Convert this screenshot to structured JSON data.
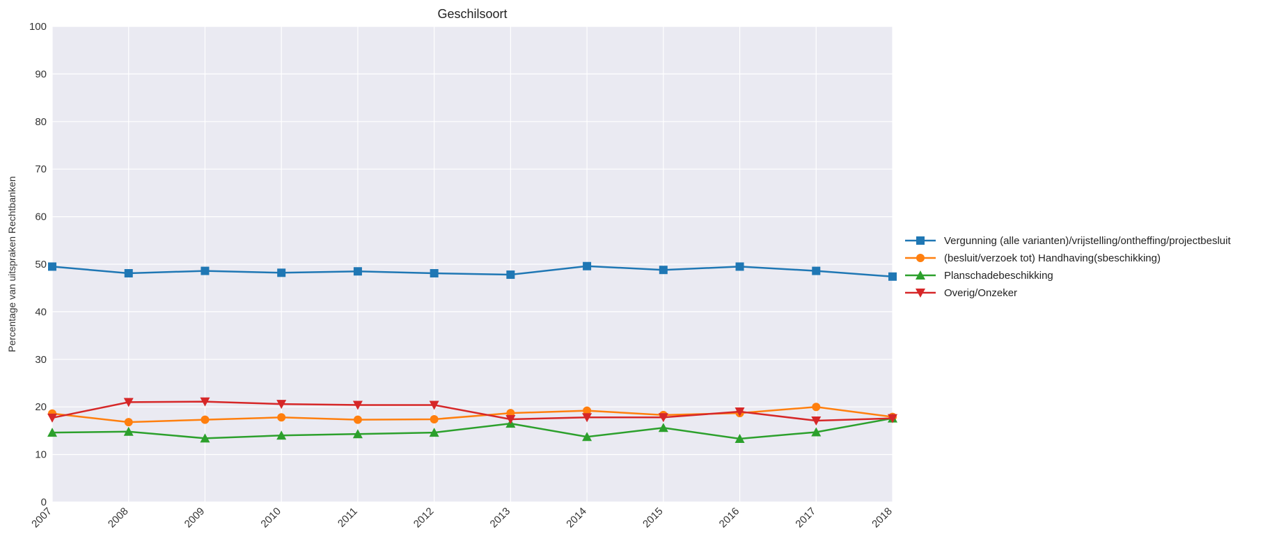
{
  "chart_data": {
    "type": "line",
    "title": "Geschilsoort",
    "xlabel": "",
    "ylabel": "Percentage van uitspraken Rechtbanken",
    "ylim": [
      0,
      100
    ],
    "yticks": [
      0,
      10,
      20,
      30,
      40,
      50,
      60,
      70,
      80,
      90,
      100
    ],
    "categories": [
      "2007",
      "2008",
      "2009",
      "2010",
      "2011",
      "2012",
      "2013",
      "2014",
      "2015",
      "2016",
      "2017",
      "2018"
    ],
    "grid": true,
    "legend_position": "right",
    "background": "#eaeaf2",
    "series": [
      {
        "name": "Vergunning (alle varianten)/vrijstelling/ontheffing/projectbesluit",
        "color": "#1f77b4",
        "marker": "square",
        "values": [
          49.5,
          48.1,
          48.6,
          48.2,
          48.5,
          48.1,
          47.8,
          49.6,
          48.8,
          49.5,
          48.6,
          47.4
        ]
      },
      {
        "name": "(besluit/verzoek tot) Handhaving(sbeschikking)",
        "color": "#ff7f0e",
        "marker": "circle",
        "values": [
          18.6,
          16.8,
          17.3,
          17.8,
          17.3,
          17.4,
          18.7,
          19.2,
          18.3,
          18.7,
          20.0,
          17.9
        ]
      },
      {
        "name": "Planschadebeschikking",
        "color": "#2ca02c",
        "marker": "triangle-up",
        "values": [
          14.6,
          14.8,
          13.4,
          14.0,
          14.3,
          14.6,
          16.5,
          13.7,
          15.6,
          13.3,
          14.7,
          17.6
        ]
      },
      {
        "name": "Overig/Onzeker",
        "color": "#d62728",
        "marker": "triangle-down",
        "values": [
          17.7,
          21.0,
          21.1,
          20.6,
          20.4,
          20.4,
          17.4,
          17.8,
          17.8,
          19.0,
          17.1,
          17.6
        ]
      }
    ]
  }
}
